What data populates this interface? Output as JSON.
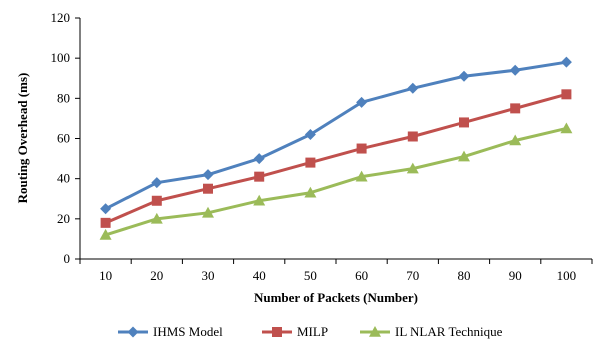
{
  "chart_data": {
    "type": "line",
    "title": "",
    "xlabel": "Number  of Packets (Number)",
    "ylabel": "Routing  Overhead  (ms)",
    "categories": [
      "10",
      "20",
      "30",
      "40",
      "50",
      "60",
      "70",
      "80",
      "90",
      "100"
    ],
    "ylim": [
      0,
      120
    ],
    "yticks": [
      "0",
      "20",
      "40",
      "60",
      "80",
      "100",
      "120"
    ],
    "grid": false,
    "legend_position": "bottom",
    "series": [
      {
        "name": "IHMS Model",
        "color": "#4F81BD",
        "marker": "diamond",
        "values": [
          25,
          38,
          42,
          50,
          62,
          78,
          85,
          91,
          94,
          98
        ]
      },
      {
        "name": "MILP",
        "color": "#C0504D",
        "marker": "square",
        "values": [
          18,
          29,
          35,
          41,
          48,
          55,
          61,
          68,
          75,
          82
        ]
      },
      {
        "name": "IL NLAR Technique",
        "color": "#9BBB59",
        "marker": "triangle",
        "values": [
          12,
          20,
          23,
          29,
          33,
          41,
          45,
          51,
          59,
          65
        ]
      }
    ]
  }
}
